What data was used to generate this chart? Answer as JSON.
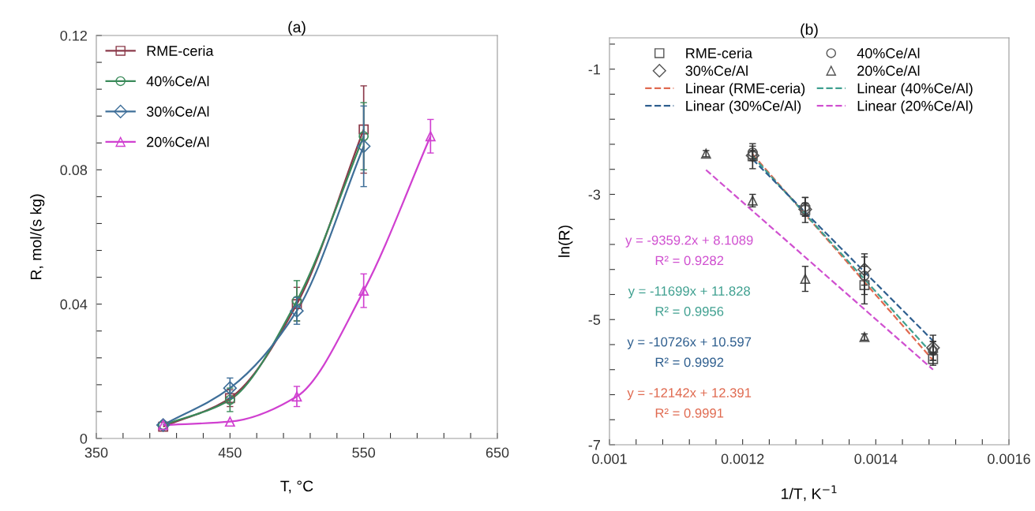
{
  "chart_data": [
    {
      "type": "line",
      "title": "(a)",
      "xlabel": "T, °C",
      "ylabel": "R, mol/(s kg)",
      "xlim": [
        350,
        650
      ],
      "ylim": [
        0,
        0.12
      ],
      "xticks": [
        350,
        {
          "value": 370,
          "label": null
        },
        {
          "value": 390,
          "label": null
        },
        {
          "value": 410,
          "label": null
        },
        {
          "value": 430,
          "label": null
        },
        450,
        {
          "value": 470,
          "label": null
        },
        {
          "value": 490,
          "label": null
        },
        {
          "value": 510,
          "label": null
        },
        {
          "value": 530,
          "label": null
        },
        550,
        {
          "value": 570,
          "label": null
        },
        {
          "value": 590,
          "label": null
        },
        {
          "value": 610,
          "label": null
        },
        {
          "value": 630,
          "label": null
        },
        650
      ],
      "yticks": [
        0,
        {
          "value": 0.008,
          "label": null
        },
        {
          "value": 0.016,
          "label": null
        },
        {
          "value": 0.024,
          "label": null
        },
        {
          "value": 0.032,
          "label": null
        },
        0.04,
        {
          "value": 0.048,
          "label": null
        },
        {
          "value": 0.056,
          "label": null
        },
        {
          "value": 0.064,
          "label": null
        },
        {
          "value": 0.072,
          "label": null
        },
        0.08,
        {
          "value": 0.088,
          "label": null
        },
        {
          "value": 0.096,
          "label": null
        },
        {
          "value": 0.104,
          "label": null
        },
        {
          "value": 0.112,
          "label": null
        },
        0.12
      ],
      "grid": false,
      "legend": "top left",
      "series": [
        {
          "name": "RME-ceria",
          "color": "#8b3a4a",
          "marker": "square",
          "x": [
            400,
            450,
            500,
            550
          ],
          "values": [
            0.0035,
            0.012,
            0.04,
            0.092
          ],
          "errors": [
            null,
            0.0025,
            0.005,
            0.013
          ]
        },
        {
          "name": "40%Ce/Al",
          "color": "#3a8a5a",
          "marker": "circle",
          "x": [
            400,
            450,
            500,
            550
          ],
          "values": [
            0.004,
            0.0115,
            0.041,
            0.09
          ],
          "errors": [
            null,
            0.0035,
            0.006,
            0.01
          ]
        },
        {
          "name": "30%Ce/Al",
          "color": "#3f6f99",
          "marker": "diamond",
          "x": [
            400,
            450,
            500,
            550
          ],
          "values": [
            0.004,
            0.015,
            0.038,
            0.087
          ],
          "errors": [
            null,
            0.003,
            0.004,
            0.012
          ]
        },
        {
          "name": "20%Ce/Al",
          "color": "#d040d0",
          "marker": "triangle",
          "x": [
            400,
            450,
            500,
            550,
            600
          ],
          "values": [
            0.004,
            0.005,
            0.0125,
            0.044,
            0.09
          ],
          "errors": [
            null,
            null,
            0.003,
            0.005,
            0.005
          ]
        }
      ]
    },
    {
      "type": "scatter",
      "title": "(b)",
      "xlabel": "1/T, K$^{−1}$",
      "ylabel": "ln(R)",
      "xlim": [
        0.001,
        0.0016
      ],
      "ylim": [
        -7,
        -0.5
      ],
      "xticks": [
        0.001,
        {
          "value": 0.00104,
          "label": null
        },
        {
          "value": 0.00108,
          "label": null
        },
        {
          "value": 0.00112,
          "label": null
        },
        {
          "value": 0.00116,
          "label": null
        },
        0.0012,
        {
          "value": 0.00124,
          "label": null
        },
        {
          "value": 0.00128,
          "label": null
        },
        {
          "value": 0.00132,
          "label": null
        },
        {
          "value": 0.00136,
          "label": null
        },
        0.0014,
        {
          "value": 0.00144,
          "label": null
        },
        {
          "value": 0.00148,
          "label": null
        },
        {
          "value": 0.00152,
          "label": null
        },
        {
          "value": 0.00156,
          "label": null
        },
        0.0016
      ],
      "yticks": [
        -7,
        {
          "value": -6.6,
          "label": null
        },
        {
          "value": -6.2,
          "label": null
        },
        {
          "value": -5.8,
          "label": null
        },
        {
          "value": -5.4,
          "label": null
        },
        -5,
        {
          "value": -4.6,
          "label": null
        },
        {
          "value": -4.2,
          "label": null
        },
        {
          "value": -3.8,
          "label": null
        },
        {
          "value": -3.4,
          "label": null
        },
        -3,
        {
          "value": -2.6,
          "label": null
        },
        {
          "value": -2.2,
          "label": null
        },
        {
          "value": -1.8,
          "label": null
        },
        {
          "value": -1.4,
          "label": null
        },
        -1,
        {
          "value": -0.6,
          "label": null
        }
      ],
      "grid": false,
      "legend": "top",
      "series": [
        {
          "name": "RME-ceria",
          "color": "#555555",
          "marker": "square",
          "x": [
            0.001215,
            0.001294,
            0.001383,
            0.001486
          ],
          "values": [
            -2.39,
            -3.25,
            -4.45,
            -5.63
          ],
          "errors": [
            0.2,
            0.2,
            0.3,
            0.1
          ]
        },
        {
          "name": "40%Ce/Al",
          "color": "#555555",
          "marker": "circle",
          "x": [
            0.001215,
            0.001294,
            0.001383,
            0.001486
          ],
          "values": [
            -2.33,
            -3.2,
            -4.3,
            -5.5
          ],
          "errors": [
            0.1,
            0.15,
            0.3,
            0.15
          ]
        },
        {
          "name": "30%Ce/Al",
          "color": "#555555",
          "marker": "diamond",
          "x": [
            0.001215,
            0.001294,
            0.001383,
            0.001486
          ],
          "values": [
            -2.38,
            -3.24,
            -4.2,
            -5.45
          ],
          "errors": [
            0.08,
            0.1,
            0.25,
            0.2
          ]
        },
        {
          "name": "20%Ce/Al",
          "color": "#555555",
          "marker": "triangle",
          "x": [
            0.001145,
            0.001215,
            0.001294,
            0.001383,
            0.001486
          ],
          "values": [
            -2.35,
            -3.1,
            -4.35,
            -5.28,
            -5.45
          ],
          "errors": [
            0.05,
            0.1,
            0.2,
            0.05,
            0.1
          ]
        },
        {
          "name": "Linear (RME-ceria)",
          "type": "line",
          "line_style": "dashed",
          "marker": "none",
          "color": "#e06a50",
          "x": [
            0.001215,
            0.001486
          ],
          "values": [
            -2.36,
            -5.65
          ]
        },
        {
          "name": "Linear (40%Ce/Al)",
          "type": "line",
          "line_style": "dashed",
          "marker": "none",
          "color": "#3fa090",
          "x": [
            0.001215,
            0.001486
          ],
          "values": [
            -2.39,
            -5.56
          ]
        },
        {
          "name": "Linear (30%Ce/Al)",
          "type": "line",
          "line_style": "dashed",
          "marker": "none",
          "color": "#2f5f8f",
          "x": [
            0.001215,
            0.001486
          ],
          "values": [
            -2.44,
            -5.34
          ]
        },
        {
          "name": "Linear (20%Ce/Al)",
          "type": "line",
          "line_style": "dashed",
          "marker": "none",
          "color": "#d050d0",
          "x": [
            0.001145,
            0.001486
          ],
          "values": [
            -2.61,
            -5.8
          ]
        }
      ],
      "annotations": [
        "y = -9359.2x + 8.1089",
        "R² = 0.9282",
        "y = -11699x + 11.828",
        "R² = 0.9956",
        "y = -10726x + 10.597",
        "R² = 0.9992",
        "y = -12142x + 12.391",
        "R² = 0.9991"
      ]
    }
  ]
}
